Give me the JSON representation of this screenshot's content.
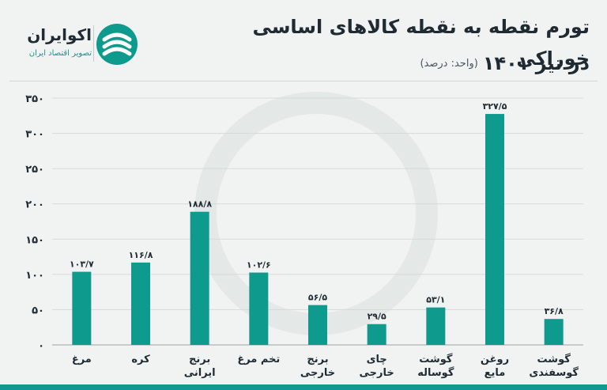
{
  "header": {
    "title_line1": "تورم نقطه به نقطه کالاهای اساسی خوراکی",
    "title_line2": "در تیر ۱۴۰۱",
    "unit_note": "(واحد: درصد)"
  },
  "logo": {
    "name": "اکوایران",
    "tagline": "تصویر اقتصاد ایران"
  },
  "colors": {
    "bar": "#0f9a8e",
    "accent": "#0f9a8e",
    "text": "#1f2a33"
  },
  "chart_data": {
    "type": "bar",
    "categories": [
      [
        "مرغ"
      ],
      [
        "کره"
      ],
      [
        "برنج",
        "ایرانی"
      ],
      [
        "تخم مرغ"
      ],
      [
        "برنج",
        "خارجی"
      ],
      [
        "چای",
        "خارجی"
      ],
      [
        "گوشت",
        "گوساله"
      ],
      [
        "روغن",
        "مایع"
      ],
      [
        "گوشت",
        "گوسفندی"
      ]
    ],
    "values": [
      103.7,
      116.8,
      188.8,
      102.6,
      56.5,
      29.5,
      53.1,
      327.5,
      36.8
    ],
    "value_labels": [
      "۱۰۳/۷",
      "۱۱۶/۸",
      "۱۸۸/۸",
      "۱۰۲/۶",
      "۵۶/۵",
      "۲۹/۵",
      "۵۳/۱",
      "۳۲۷/۵",
      "۳۶/۸"
    ],
    "ylim": [
      0,
      350
    ],
    "yticks": [
      0,
      50,
      100,
      150,
      200,
      250,
      300,
      350
    ],
    "ytick_labels": [
      "۰",
      "۵۰",
      "۱۰۰",
      "۱۵۰",
      "۲۰۰",
      "۲۵۰",
      "۳۰۰",
      "۳۵۰"
    ],
    "grid": true
  }
}
